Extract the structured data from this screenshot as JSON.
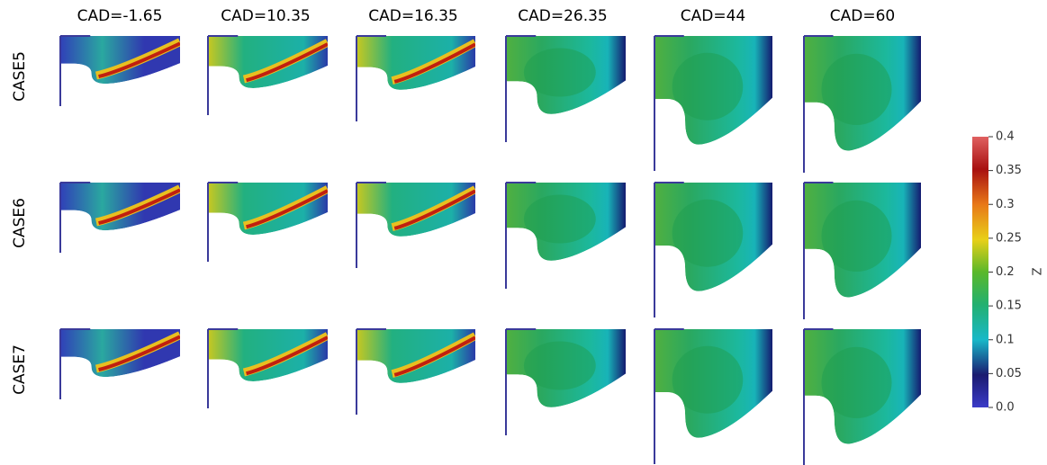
{
  "figure": {
    "columns": [
      "CAD=-1.65",
      "CAD=10.35",
      "CAD=16.35",
      "CAD=26.35",
      "CAD=44",
      "CAD=60"
    ],
    "rows": [
      "CASE5",
      "CASE6",
      "CASE7"
    ],
    "colorbar": {
      "label": "Z",
      "lim": [
        0,
        0.4
      ],
      "ticks": [
        0.4,
        0.35,
        0.3,
        0.25,
        0.2,
        0.15,
        0.1,
        0.05,
        {
          "value": 0,
          "label": "0.0"
        }
      ]
    }
  }
}
